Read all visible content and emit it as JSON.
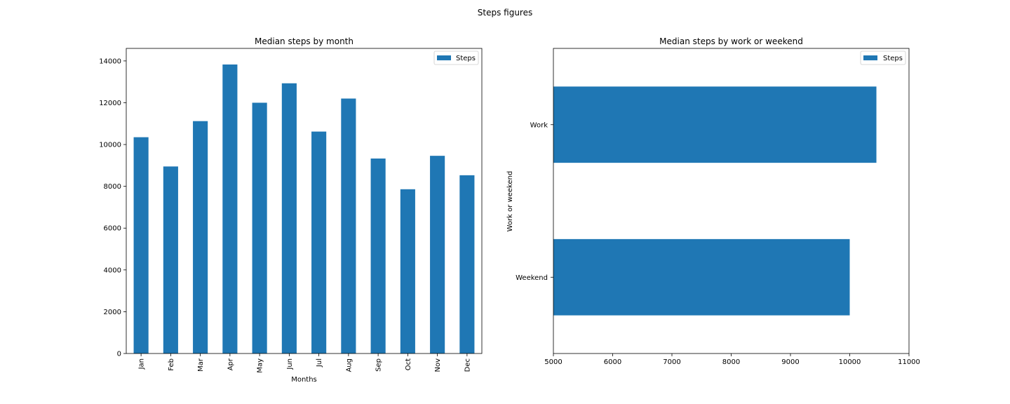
{
  "figure": {
    "suptitle": "Steps figures"
  },
  "colors": {
    "bar": "#1f77b4",
    "axis": "#000000",
    "legend_border": "#cccccc"
  },
  "chart_data": [
    {
      "type": "bar",
      "orientation": "vertical",
      "title": "Median steps by month",
      "xlabel": "Months",
      "ylabel": "",
      "categories": [
        "Jan",
        "Feb",
        "Mar",
        "Apr",
        "May",
        "Jun",
        "Jul",
        "Aug",
        "Sep",
        "Oct",
        "Nov",
        "Dec"
      ],
      "series": [
        {
          "name": "Steps",
          "values": [
            10350,
            8950,
            11120,
            13830,
            12000,
            12930,
            10620,
            12200,
            9330,
            7860,
            9460,
            8530
          ]
        }
      ],
      "ylim": [
        0,
        14600
      ],
      "yticks": [
        0,
        2000,
        4000,
        6000,
        8000,
        10000,
        12000,
        14000
      ],
      "grid": false,
      "legend_position": "top-right"
    },
    {
      "type": "bar",
      "orientation": "horizontal",
      "title": "Median steps by work or weekend",
      "xlabel": "",
      "ylabel": "Work or weekend",
      "categories": [
        "Weekend",
        "Work"
      ],
      "series": [
        {
          "name": "Steps",
          "values": [
            10000,
            10450
          ]
        }
      ],
      "xlim": [
        5000,
        11000
      ],
      "xticks": [
        5000,
        6000,
        7000,
        8000,
        9000,
        10000,
        11000
      ],
      "grid": false,
      "legend_position": "top-right"
    }
  ]
}
